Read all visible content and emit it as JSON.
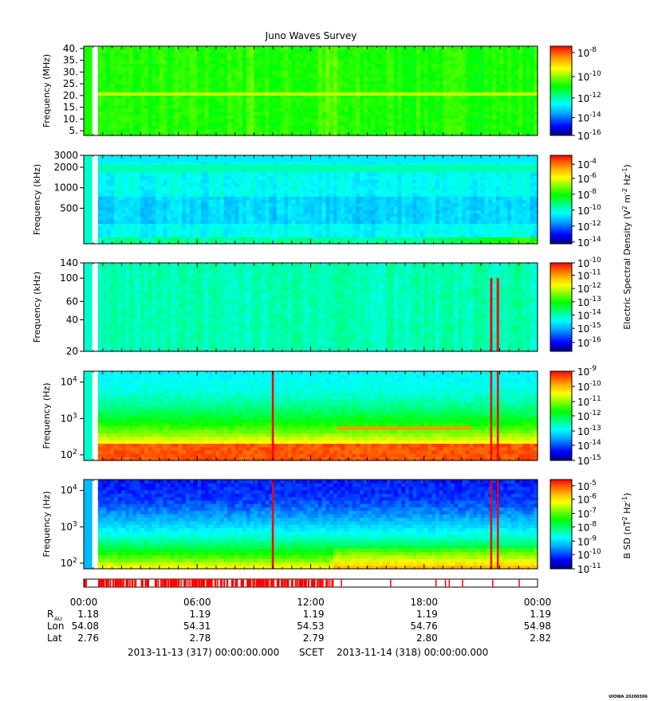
{
  "title": "Juno Waves Survey",
  "footer_credit": "UIOWA 20200306",
  "colors": {
    "scale": [
      "#00007f",
      "#0000ff",
      "#00aaff",
      "#00ffff",
      "#00ff7f",
      "#00ff00",
      "#7fff00",
      "#ffff00",
      "#ffaa00",
      "#ff5500",
      "#ff0000"
    ],
    "burst": "#ff0000"
  },
  "chart_data": [
    {
      "type": "heatmap",
      "ylabel": "Frequency (MHz)",
      "yscale": "linear",
      "ylim": [
        3,
        41
      ],
      "yticks": [
        {
          "v": 5,
          "label": "5."
        },
        {
          "v": 10,
          "label": "10."
        },
        {
          "v": 15,
          "label": "15."
        },
        {
          "v": 20,
          "label": "20."
        },
        {
          "v": 25,
          "label": "25."
        },
        {
          "v": 30,
          "label": "30."
        },
        {
          "v": 35,
          "label": "35."
        },
        {
          "v": 40,
          "label": "40."
        }
      ],
      "colorbar_ticks": [
        {
          "exp": "-8",
          "level": 0.93
        },
        {
          "exp": "-10",
          "level": 0.66
        },
        {
          "exp": "-12",
          "level": 0.42
        },
        {
          "exp": "-14",
          "level": 0.2
        },
        {
          "exp": "-16",
          "level": -0.02
        }
      ],
      "background_level": 0.52
    },
    {
      "type": "heatmap",
      "ylabel": "Frequency (kHz)",
      "yscale": "log",
      "ylim": [
        150,
        3000
      ],
      "yticks": [
        {
          "v": 500,
          "label": "500"
        },
        {
          "v": 1000,
          "label": "1000"
        },
        {
          "v": 2000,
          "label": "2000"
        },
        {
          "v": 3000,
          "label": "3000"
        }
      ],
      "colorbar_ticks": [
        {
          "exp": "-4",
          "level": 0.9
        },
        {
          "exp": "-6",
          "level": 0.74
        },
        {
          "exp": "-8",
          "level": 0.56
        },
        {
          "exp": "-10",
          "level": 0.38
        },
        {
          "exp": "-12",
          "level": 0.2
        },
        {
          "exp": "-14",
          "level": 0.02
        }
      ],
      "background_level": 0.3
    },
    {
      "type": "heatmap",
      "ylabel": "Frequency (kHz)",
      "yscale": "log",
      "ylim": [
        20,
        140
      ],
      "yticks": [
        {
          "v": 20,
          "label": "20"
        },
        {
          "v": 40,
          "label": "40"
        },
        {
          "v": 60,
          "label": "60"
        },
        {
          "v": 100,
          "label": "100"
        },
        {
          "v": 140,
          "label": "140"
        }
      ],
      "colorbar_ticks": [
        {
          "exp": "-10",
          "level": 1.0
        },
        {
          "exp": "-11",
          "level": 0.86
        },
        {
          "exp": "-12",
          "level": 0.71
        },
        {
          "exp": "-13",
          "level": 0.56
        },
        {
          "exp": "-14",
          "level": 0.41
        },
        {
          "exp": "-15",
          "level": 0.26
        },
        {
          "exp": "-16",
          "level": 0.1
        }
      ],
      "background_level": 0.36
    },
    {
      "type": "heatmap",
      "ylabel": "Frequency (Hz)",
      "yscale": "log",
      "ylim": [
        70,
        20000
      ],
      "yticks": [
        {
          "v": 100,
          "label": "10",
          "exp": "2"
        },
        {
          "v": 1000,
          "label": "10",
          "exp": "3"
        },
        {
          "v": 10000,
          "label": "10",
          "exp": "4"
        }
      ],
      "colorbar_ticks": [
        {
          "exp": "-9",
          "level": 1.0
        },
        {
          "exp": "-10",
          "level": 0.83
        },
        {
          "exp": "-11",
          "level": 0.66
        },
        {
          "exp": "-12",
          "level": 0.5
        },
        {
          "exp": "-13",
          "level": 0.33
        },
        {
          "exp": "-14",
          "level": 0.17
        },
        {
          "exp": "-15",
          "level": 0.0
        }
      ],
      "background_level": 0.3
    },
    {
      "type": "heatmap",
      "ylabel": "Frequency (Hz)",
      "yscale": "log",
      "ylim": [
        70,
        20000
      ],
      "yticks": [
        {
          "v": 100,
          "label": "10",
          "exp": "2"
        },
        {
          "v": 1000,
          "label": "10",
          "exp": "3"
        },
        {
          "v": 10000,
          "label": "10",
          "exp": "4"
        }
      ],
      "colorbar_ticks": [
        {
          "exp": "-5",
          "level": 0.93
        },
        {
          "exp": "-6",
          "level": 0.78
        },
        {
          "exp": "-7",
          "level": 0.62
        },
        {
          "exp": "-8",
          "level": 0.47
        },
        {
          "exp": "-9",
          "level": 0.31
        },
        {
          "exp": "-10",
          "level": 0.16
        },
        {
          "exp": "-11",
          "level": 0.0
        }
      ],
      "background_level": 0.1
    }
  ],
  "colorbar_labels": {
    "electric": "Electric Spectral Density (V",
    "electric_parts": [
      "2",
      " m",
      "-2",
      " Hz",
      "-1",
      ")"
    ],
    "magnetic": "B SD (nT",
    "magnetic_parts": [
      "2",
      " Hz",
      "-1",
      ")"
    ]
  },
  "time_axis": {
    "start_hours": 0,
    "end_hours": 24,
    "labels": [
      {
        "t": 0,
        "label": "00:00"
      },
      {
        "t": 6,
        "label": "06:00"
      },
      {
        "t": 12,
        "label": "12:00"
      },
      {
        "t": 18,
        "label": "18:00"
      },
      {
        "t": 24,
        "label": "00:00"
      }
    ]
  },
  "ephemeris": {
    "rows": [
      {
        "name": "R",
        "sub": "AU",
        "values": [
          "1.18",
          "1.19",
          "1.19",
          "1.19",
          "1.19"
        ]
      },
      {
        "name": "Lon",
        "values": [
          "54.08",
          "54.31",
          "54.53",
          "54.76",
          "54.98"
        ]
      },
      {
        "name": "Lat",
        "values": [
          "2.76",
          "2.78",
          "2.79",
          "2.80",
          "2.82"
        ]
      }
    ]
  },
  "time_range": {
    "start": "2013-11-13 (317) 00:00:00.000",
    "label": "SCET",
    "end": "2013-11-14 (318) 00:00:00.000"
  },
  "gap_hours": [
    0.45,
    0.75
  ],
  "bursts_hours": [
    10.0,
    21.55,
    21.9
  ]
}
